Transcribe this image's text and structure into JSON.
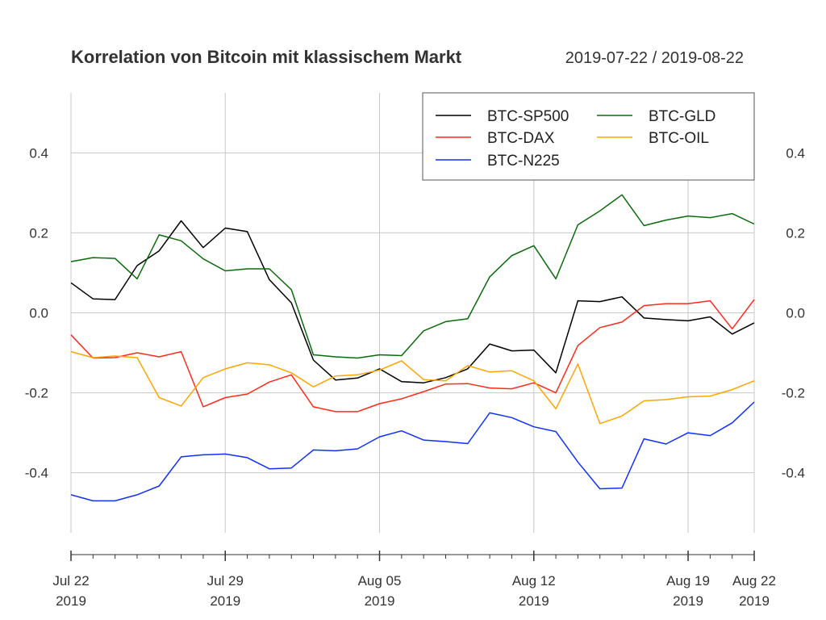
{
  "chart_data": {
    "type": "line",
    "title": "Korrelation von Bitcoin mit klassischem Markt",
    "subtitle": "2019-07-22 / 2019-08-22",
    "ylim": [
      -0.55,
      0.55
    ],
    "y_ticks": [
      -0.4,
      -0.2,
      0.0,
      0.2,
      0.4
    ],
    "y_tick_labels": [
      "-0.4",
      "-0.2",
      "0.0",
      "0.2",
      "0.4"
    ],
    "x_tick_labels": [
      {
        "date": "2019-07-22",
        "line1": "Jul 22",
        "line2": "2019"
      },
      {
        "date": "2019-07-29",
        "line1": "Jul 29",
        "line2": "2019"
      },
      {
        "date": "2019-08-05",
        "line1": "Aug 05",
        "line2": "2019"
      },
      {
        "date": "2019-08-12",
        "line1": "Aug 12",
        "line2": "2019"
      },
      {
        "date": "2019-08-19",
        "line1": "Aug 19",
        "line2": "2019"
      },
      {
        "date": "2019-08-22",
        "line1": "Aug 22",
        "line2": "2019"
      }
    ],
    "grid": true,
    "legend_position": "top-right",
    "dates": [
      "2019-07-22",
      "2019-07-23",
      "2019-07-24",
      "2019-07-25",
      "2019-07-26",
      "2019-07-27",
      "2019-07-28",
      "2019-07-29",
      "2019-07-30",
      "2019-07-31",
      "2019-08-01",
      "2019-08-02",
      "2019-08-03",
      "2019-08-04",
      "2019-08-05",
      "2019-08-06",
      "2019-08-07",
      "2019-08-08",
      "2019-08-09",
      "2019-08-10",
      "2019-08-11",
      "2019-08-12",
      "2019-08-13",
      "2019-08-14",
      "2019-08-15",
      "2019-08-16",
      "2019-08-17",
      "2019-08-18",
      "2019-08-19",
      "2019-08-20",
      "2019-08-21",
      "2019-08-22"
    ],
    "series": [
      {
        "name": "BTC-SP500",
        "color": "#000000",
        "values": [
          0.075,
          0.035,
          0.033,
          0.118,
          0.155,
          0.23,
          0.163,
          0.212,
          0.203,
          0.083,
          0.025,
          -0.118,
          -0.168,
          -0.163,
          -0.14,
          -0.172,
          -0.175,
          -0.162,
          -0.14,
          -0.078,
          -0.095,
          -0.093,
          -0.15,
          0.03,
          0.028,
          0.04,
          -0.013,
          -0.017,
          -0.02,
          -0.01,
          -0.053,
          -0.025
        ]
      },
      {
        "name": "BTC-DAX",
        "color": "#ff2b1a",
        "values": [
          -0.055,
          -0.113,
          -0.112,
          -0.1,
          -0.11,
          -0.097,
          -0.235,
          -0.212,
          -0.203,
          -0.173,
          -0.155,
          -0.235,
          -0.247,
          -0.247,
          -0.227,
          -0.215,
          -0.197,
          -0.178,
          -0.177,
          -0.188,
          -0.19,
          -0.175,
          -0.2,
          -0.082,
          -0.037,
          -0.023,
          0.018,
          0.023,
          0.023,
          0.03,
          -0.04,
          0.033
        ]
      },
      {
        "name": "BTC-N225",
        "color": "#1030ff",
        "values": [
          -0.455,
          -0.47,
          -0.47,
          -0.455,
          -0.433,
          -0.36,
          -0.355,
          -0.353,
          -0.362,
          -0.39,
          -0.388,
          -0.343,
          -0.345,
          -0.34,
          -0.31,
          -0.295,
          -0.318,
          -0.322,
          -0.327,
          -0.25,
          -0.262,
          -0.285,
          -0.297,
          -0.373,
          -0.44,
          -0.438,
          -0.315,
          -0.328,
          -0.3,
          -0.307,
          -0.275,
          -0.223
        ]
      },
      {
        "name": "BTC-GLD",
        "color": "#0a6b0a",
        "values": [
          0.128,
          0.138,
          0.136,
          0.085,
          0.195,
          0.18,
          0.135,
          0.105,
          0.11,
          0.11,
          0.058,
          -0.105,
          -0.11,
          -0.113,
          -0.105,
          -0.107,
          -0.045,
          -0.022,
          -0.015,
          0.09,
          0.143,
          0.168,
          0.085,
          0.22,
          0.255,
          0.295,
          0.218,
          0.232,
          0.242,
          0.238,
          0.248,
          0.222
        ]
      },
      {
        "name": "BTC-OIL",
        "color": "#ffa500",
        "values": [
          -0.097,
          -0.112,
          -0.108,
          -0.112,
          -0.212,
          -0.233,
          -0.162,
          -0.14,
          -0.125,
          -0.13,
          -0.15,
          -0.185,
          -0.158,
          -0.155,
          -0.143,
          -0.12,
          -0.167,
          -0.17,
          -0.132,
          -0.148,
          -0.145,
          -0.17,
          -0.24,
          -0.128,
          -0.277,
          -0.258,
          -0.22,
          -0.217,
          -0.21,
          -0.208,
          -0.192,
          -0.17
        ]
      }
    ]
  }
}
